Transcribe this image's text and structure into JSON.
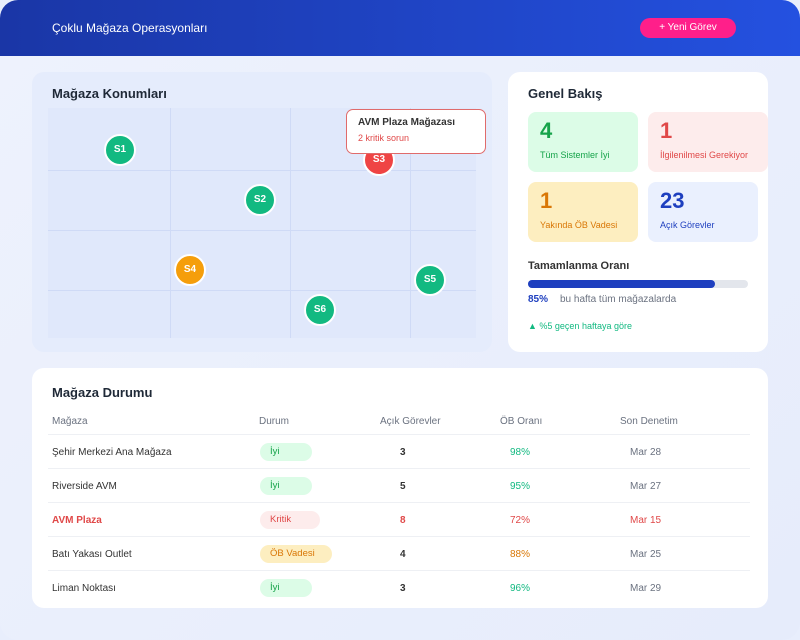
{
  "header": {
    "title": "Çoklu Mağaza Operasyonları",
    "new_task_label": "+ Yeni Görev"
  },
  "map": {
    "title": "Mağaza Konumları",
    "pins": [
      {
        "label": "S1",
        "status": "good"
      },
      {
        "label": "S2",
        "status": "good"
      },
      {
        "label": "S3",
        "status": "critical"
      },
      {
        "label": "S4",
        "status": "warning"
      },
      {
        "label": "S5",
        "status": "good"
      },
      {
        "label": "S6",
        "status": "good"
      }
    ],
    "tooltip": {
      "title": "AVM Plaza Mağazası",
      "subtitle": "2 kritik sorun"
    }
  },
  "overview": {
    "title": "Genel Bakış",
    "stats": [
      {
        "value": "4",
        "label": "Tüm Sistemler İyi"
      },
      {
        "value": "1",
        "label": "İlgilenilmesi Gerekiyor"
      },
      {
        "value": "1",
        "label": "Yakında ÖB Vadesi"
      },
      {
        "value": "23",
        "label": "Açık Görevler"
      }
    ],
    "completion": {
      "title": "Tamamlanma Oranı",
      "percent": 85,
      "percent_label": "85%",
      "caption": "bu hafta tüm mağazalarda",
      "trend": "▲ %5 geçen haftaya göre"
    }
  },
  "table": {
    "title": "Mağaza Durumu",
    "columns": [
      "Mağaza",
      "Durum",
      "Açık Görevler",
      "ÖB Oranı",
      "Son Denetim"
    ],
    "rows": [
      {
        "store": "Şehir Merkezi Ana Mağaza",
        "status": "İyi",
        "open": "3",
        "rate": "98%",
        "last": "Mar 28"
      },
      {
        "store": "Riverside AVM",
        "status": "İyi",
        "open": "5",
        "rate": "95%",
        "last": "Mar 27"
      },
      {
        "store": "AVM Plaza",
        "status": "Kritik",
        "open": "8",
        "rate": "72%",
        "last": "Mar 15"
      },
      {
        "store": "Batı Yakası Outlet",
        "status": "ÖB Vadesi",
        "open": "4",
        "rate": "88%",
        "last": "Mar 25"
      },
      {
        "store": "Liman Noktası",
        "status": "İyi",
        "open": "3",
        "rate": "96%",
        "last": "Mar 29"
      }
    ]
  },
  "colors": {
    "good": "#12b981",
    "critical": "#ef4444",
    "warning": "#f59e0b",
    "accent": "#1e3fbf",
    "pink": "#ff1f8a"
  }
}
